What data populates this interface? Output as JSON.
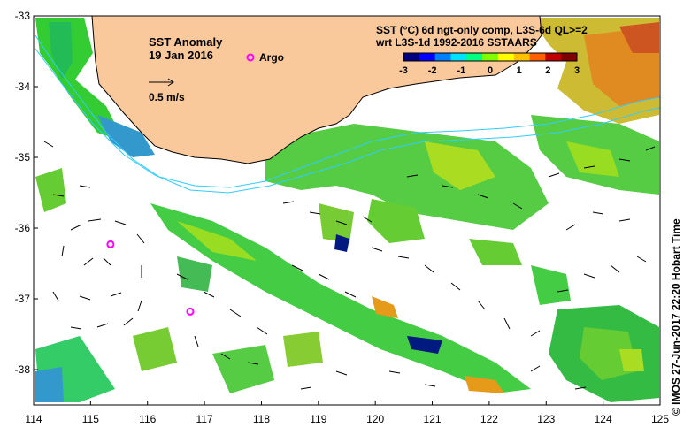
{
  "map": {
    "title": "SST Anomaly",
    "date": "19 Jan 2016",
    "legend_argo": "Argo",
    "legend_vector": "0.5 m/s",
    "product_line1": "SST (°C) 6d ngt-only comp, L3S-6d QL>=2",
    "product_line2": "wrt L3S-1d 1992-2016 SSTAARS",
    "credit": "© IMOS 27-Jun-2017 22:20 Hobart Time",
    "land_color": "#f9c99b",
    "ocean_color": "#ffffff",
    "argo_color": "#ff00ff",
    "contour_color": "#33ccff"
  },
  "colorbar": {
    "ticks": [
      "-3",
      "-2",
      "-1",
      "0",
      "1",
      "2",
      "3"
    ],
    "colors": [
      "#000080",
      "#0000ff",
      "#0080ff",
      "#00e0ff",
      "#00ff80",
      "#80ff00",
      "#ffff00",
      "#ffc000",
      "#ff6000",
      "#c00000",
      "#800000"
    ]
  },
  "axes": {
    "x_ticks": [
      "114",
      "115",
      "116",
      "117",
      "118",
      "119",
      "120",
      "121",
      "122",
      "123",
      "124",
      "125"
    ],
    "y_ticks": [
      "-33",
      "-34",
      "-35",
      "-36",
      "-37",
      "-38"
    ],
    "lon_range": [
      114,
      125
    ],
    "lat_range": [
      -38.5,
      -33
    ]
  },
  "argo_floats": [
    {
      "lon": 115.35,
      "lat": -36.23
    },
    {
      "lon": 116.75,
      "lat": -37.18
    }
  ]
}
